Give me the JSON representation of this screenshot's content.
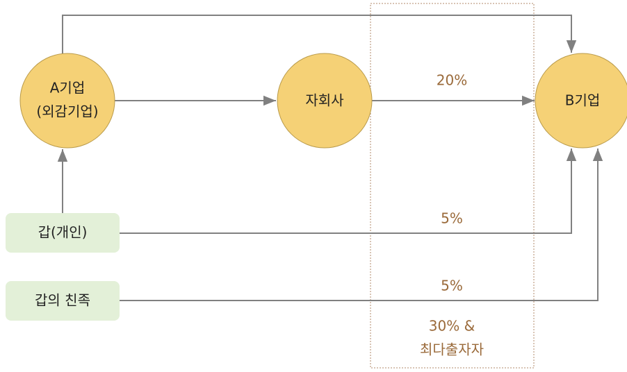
{
  "nodes": [
    {
      "label": [
        "A기업",
        "(외감기업)"
      ]
    },
    {
      "label": "자회사"
    },
    {
      "label": "B기업"
    },
    {
      "label": "갑(개인)"
    },
    {
      "label": "갑의 친족"
    }
  ],
  "edges": [
    {
      "label": "20%"
    },
    {
      "label": "5%"
    },
    {
      "label": "5%"
    }
  ],
  "note": [
    "30% &",
    "최다출자자"
  ]
}
